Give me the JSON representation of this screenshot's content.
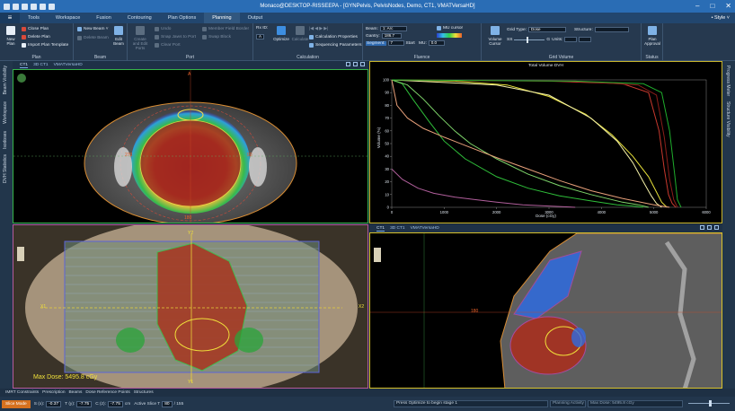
{
  "window": {
    "title": "Monaco@DESKTOP-RISSEEPA - [GYNPelvis, PelvisNodes, Demo, CT1, VMATVersaHD]",
    "controls": [
      "–",
      "□",
      "✕"
    ]
  },
  "menu": {
    "app_glyph": "≡",
    "tabs": [
      "Tools",
      "Workspace",
      "Fusion",
      "Contouring",
      "Plan Options",
      "Planning",
      "Output"
    ],
    "active": "Planning",
    "style_label": "• Style ˅"
  },
  "ribbon": {
    "plan": {
      "label": "Plan",
      "new_plan": "New Plan",
      "items": [
        "Close Plan",
        "Delete Plan",
        "Import Plan Template"
      ]
    },
    "beam": {
      "label": "Beam",
      "new_beam": "New Beam ˅",
      "delete_beam": "Delete Beam",
      "edit_beam": "Edit Beam"
    },
    "port": {
      "label": "Port",
      "create": "Create and Edit Ports",
      "undo": "Undo",
      "snap": "Snap Jaws to Port",
      "clear": "Clear Port",
      "member_field_border": "Member Field Border",
      "swap_block": "Swap Block"
    },
    "calculation": {
      "label": "Calculation",
      "rx_id_label": "Rx ID:",
      "rx_id_value": "A",
      "optimize": "Optimize",
      "calculate": "Calculate",
      "calc_props": "Calculation Properties",
      "seq_params": "Sequencing Parameters"
    },
    "fluence": {
      "label": "Fluence",
      "beam_label": "Beam:",
      "beam_value": "1: Arc",
      "gantry_label": "Gantry:",
      "gantry_value": "186.7",
      "segment_label": "Segment:",
      "segment_value": "7",
      "start_label": "Start",
      "mu_label": "MU:",
      "mu_value": "0.0",
      "mu_cursor": "MU cursor"
    },
    "grid": {
      "label": "Grid Volume",
      "volume_cursor": "Volume Cursor",
      "grid_type_label": "Grid Type:",
      "grid_type_value": "Dose",
      "structure_label": "Structure:",
      "ss_label": "SS",
      "g_label": "G",
      "units_label": "Units:"
    },
    "status": {
      "label": "Status",
      "plan_approval": "Plan Approval"
    }
  },
  "side": {
    "left": [
      "Beam Visibility",
      "Workspace",
      "Isodoses",
      "DVH Statistics"
    ],
    "right": [
      "Progress Meter",
      "Structure Visibility"
    ]
  },
  "views": {
    "tl": {
      "tabs": [
        "CT1",
        "3D CT1",
        "VMATVersaHD"
      ],
      "label_top": "A",
      "label_bottom": "180",
      "label_left": "270",
      "label_right": "90"
    },
    "tr": {
      "title": "Total Volume DVH",
      "xlabel": "Dose (cGy)",
      "ylabel": "Volume (%)"
    },
    "bl": {
      "label_top": "Y2",
      "label_bottom": "Y1",
      "label_left": "X1",
      "label_right": "X2",
      "max_dose": "Max Dose: 5495.8 cGy"
    },
    "br": {
      "tabs": [
        "CT1",
        "3D CT1",
        "VMATVersaHD"
      ],
      "label_left": "180"
    }
  },
  "chart_data": {
    "type": "line",
    "title": "Total Volume DVH",
    "xlabel": "Dose (cGy)",
    "ylabel": "Volume (%)",
    "xlim": [
      0,
      6000
    ],
    "ylim": [
      0,
      100
    ],
    "xticks": [
      0,
      1000,
      2000,
      3000,
      4000,
      5000,
      6000
    ],
    "yticks": [
      0,
      10,
      20,
      30,
      40,
      50,
      60,
      70,
      80,
      90,
      100
    ],
    "series": [
      {
        "color": "#2fbf3a",
        "x": [
          0,
          200,
          400,
          700,
          1000,
          1400,
          2000,
          2600,
          3200,
          3800,
          4300,
          4600,
          4800
        ],
        "y": [
          100,
          97,
          85,
          68,
          52,
          38,
          24,
          15,
          9,
          5,
          2,
          1,
          0
        ]
      },
      {
        "color": "#7fd66b",
        "x": [
          0,
          300,
          600,
          900,
          1200,
          1500,
          2000,
          2600,
          3200,
          3800,
          4400,
          4700,
          4900
        ],
        "y": [
          100,
          96,
          85,
          72,
          60,
          50,
          38,
          26,
          17,
          10,
          4,
          2,
          0
        ]
      },
      {
        "color": "#e8e23a",
        "x": [
          0,
          1200,
          2200,
          3000,
          3700,
          4200,
          4600,
          4900,
          5050,
          5150,
          5250
        ],
        "y": [
          100,
          99,
          96,
          87,
          73,
          57,
          40,
          24,
          12,
          4,
          0
        ]
      },
      {
        "color": "#f6f2a8",
        "x": [
          0,
          2000,
          3000,
          3800,
          4300,
          4600,
          4800,
          4950,
          5050,
          5150
        ],
        "y": [
          100,
          96,
          88,
          70,
          52,
          35,
          20,
          9,
          3,
          0
        ]
      },
      {
        "color": "#c8392e",
        "x": [
          0,
          3000,
          4400,
          4900,
          5100,
          5200,
          5280,
          5350,
          5420
        ],
        "y": [
          100,
          99,
          97,
          90,
          60,
          30,
          10,
          3,
          0
        ]
      },
      {
        "color": "#8b1e1a",
        "x": [
          0,
          3500,
          4700,
          5050,
          5200,
          5300,
          5380,
          5450
        ],
        "y": [
          100,
          99,
          96,
          88,
          55,
          22,
          6,
          0
        ]
      },
      {
        "color": "#1fae2c",
        "x": [
          0,
          3500,
          4800,
          5150,
          5300,
          5400,
          5450,
          5520
        ],
        "y": [
          100,
          99,
          97,
          90,
          60,
          25,
          6,
          0
        ]
      },
      {
        "color": "#e8a07a",
        "x": [
          0,
          100,
          300,
          600,
          1000,
          1500,
          2000,
          2600,
          3200,
          3800,
          4400,
          5000,
          5300
        ],
        "y": [
          100,
          80,
          70,
          62,
          55,
          47,
          39,
          30,
          21,
          13,
          7,
          2,
          0
        ]
      },
      {
        "color": "#b15f9c",
        "x": [
          0,
          200,
          500,
          800,
          1200,
          1600,
          2000,
          2500,
          3000,
          3500
        ],
        "y": [
          30,
          22,
          15,
          11,
          8,
          6,
          4,
          2,
          1,
          0
        ]
      }
    ]
  },
  "bottom_tabs": [
    "IMRT Constraints",
    "Prescription",
    "Beams",
    "Dose Reference Points",
    "Structures"
  ],
  "status": {
    "mode": "Slice Mode",
    "s_label": "S (x):",
    "s_value": "-0.37",
    "t_label": "T (y):",
    "t_value": "-7.75",
    "c_label": "C (z):",
    "c_value": "-7.75",
    "unit": "cm",
    "active_slice_label": "Active Slice T",
    "active_slice_value": "80",
    "slice_total": "/ 155",
    "message": "Press Optimize to begin stage 1",
    "activity": "Planning Activity",
    "max_dose": "Max Dose: 5495.8 cGy"
  }
}
